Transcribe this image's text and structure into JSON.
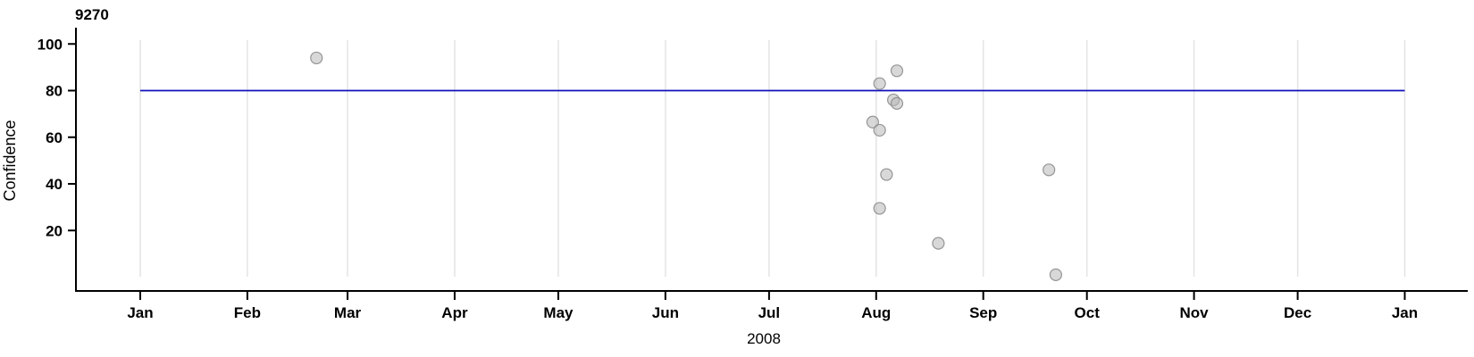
{
  "chart_data": {
    "type": "scatter",
    "title": "9270",
    "xlabel": "2008",
    "ylabel": "Confidence",
    "legend": null,
    "grid": "vertical month gridlines only",
    "x_axis": {
      "unit": "date",
      "year": "2008",
      "tick_labels": [
        "Jan",
        "Feb",
        "Mar",
        "Apr",
        "May",
        "Jun",
        "Jul",
        "Aug",
        "Sep",
        "Oct",
        "Nov",
        "Dec",
        "Jan"
      ],
      "tick_day_offsets": [
        0,
        31,
        60,
        91,
        121,
        152,
        182,
        213,
        244,
        274,
        305,
        335,
        366
      ],
      "range_days": [
        0,
        366
      ]
    },
    "y_axis": {
      "ticks": [
        20,
        40,
        60,
        80,
        100
      ],
      "range": [
        0,
        106
      ]
    },
    "reference_line": {
      "value": 80,
      "span_days": [
        0,
        366
      ],
      "color": "#1111bb"
    },
    "points": [
      {
        "date": "2008-02-21",
        "day": 51,
        "value": 94
      },
      {
        "date": "2008-08-07",
        "day": 219,
        "value": 88.5
      },
      {
        "date": "2008-08-02",
        "day": 214,
        "value": 83
      },
      {
        "date": "2008-08-06",
        "day": 218,
        "value": 76
      },
      {
        "date": "2008-08-07",
        "day": 219,
        "value": 74.5
      },
      {
        "date": "2008-07-31",
        "day": 212,
        "value": 66.5
      },
      {
        "date": "2008-08-02",
        "day": 214,
        "value": 63
      },
      {
        "date": "2008-08-04",
        "day": 216,
        "value": 44
      },
      {
        "date": "2008-08-02",
        "day": 214,
        "value": 29.5
      },
      {
        "date": "2008-08-19",
        "day": 231,
        "value": 14.5
      },
      {
        "date": "2008-09-20",
        "day": 263,
        "value": 46
      },
      {
        "date": "2008-09-22",
        "day": 265,
        "value": 1
      }
    ],
    "colors": {
      "reference_line": "#1111bb",
      "point_fill": "#b8b8b8",
      "point_stroke": "#8c8c8c",
      "grid": "#e4e4e4",
      "axis": "#000000",
      "text": "#000000",
      "background": "#ffffff"
    }
  }
}
